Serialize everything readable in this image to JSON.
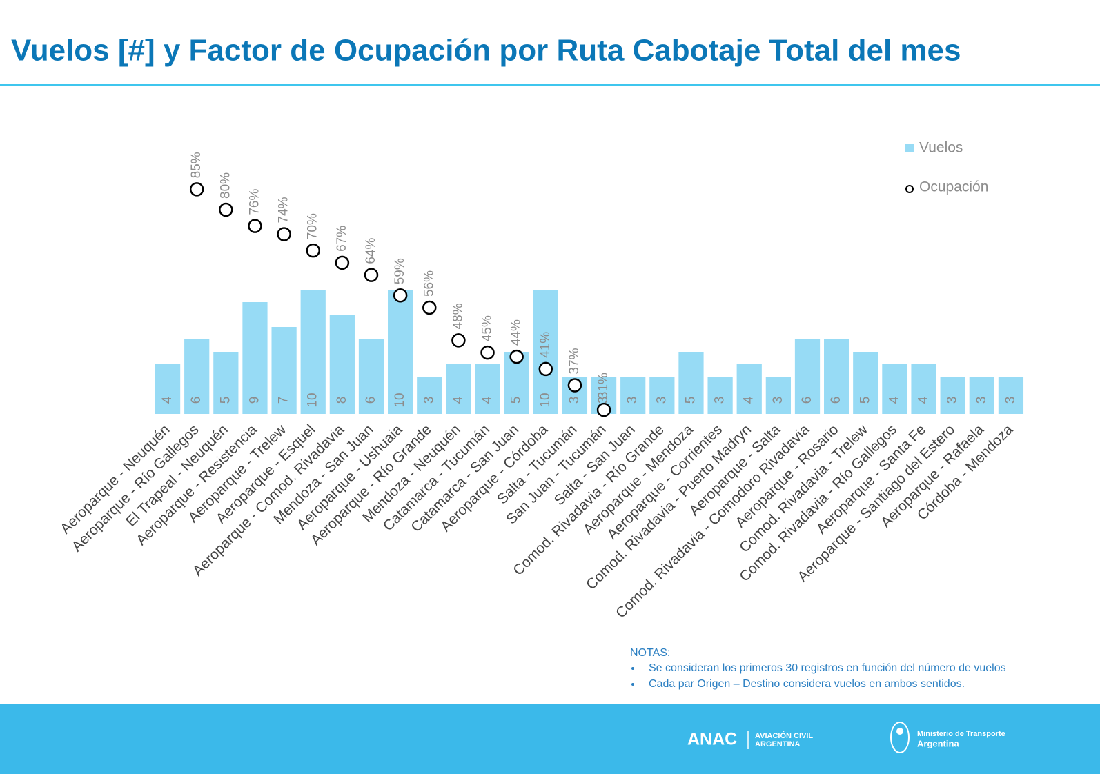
{
  "title": "Vuelos [#] y Factor de Ocupación por Ruta Cabotaje Total del mes",
  "chart_data": {
    "type": "bar",
    "categories": [
      "Aeroparque - Neuquén",
      "Aeroparque - Río Gallegos",
      "El Trapeal - Neuquén",
      "Aeroparque - Resistencia",
      "Aeroparque - Trelew",
      "Aeroparque - Esquel",
      "Aeroparque - Comod. Rivadavia",
      "Mendoza - San Juan",
      "Aeroparque - Ushuaia",
      "Aeroparque - Río Grande",
      "Mendoza - Neuquén",
      "Catamarca - Tucumán",
      "Catamarca - San Juan",
      "Aeroparque - Córdoba",
      "Salta - Tucumán",
      "San Juan - Tucumán",
      "Salta - San Juan",
      "Comod. Rivadavia - Río Grande",
      "Aeroparque - Mendoza",
      "Aeroparque - Corrientes",
      "Comod. Rivadavia - Puerto Madryn",
      "Aeroparque - Salta",
      "Comod. Rivadavia - Comodoro Rivadavia",
      "Aeroparque - Rosario",
      "Comod. Rivadavia - Trelew",
      "Comod. Rivadavia - Río Gallegos",
      "Aeroparque - Santa Fe",
      "Aeroparque - Santiago del Estero",
      "Aeroparque - Rafaela",
      "Córdoba - Mendoza"
    ],
    "series": [
      {
        "name": "Vuelos",
        "type": "bar",
        "color": "#97dbf5",
        "values": [
          4,
          6,
          5,
          9,
          7,
          10,
          8,
          6,
          10,
          3,
          4,
          4,
          5,
          10,
          3,
          3,
          3,
          3,
          5,
          3,
          4,
          3,
          6,
          6,
          5,
          4,
          4,
          3,
          3,
          3
        ]
      },
      {
        "name": "Ocupación",
        "type": "scatter",
        "axis": "y2",
        "color": "#000000",
        "values": [
          null,
          85,
          80,
          76,
          74,
          70,
          67,
          64,
          59,
          56,
          48,
          45,
          44,
          41,
          37,
          31,
          null,
          null,
          null,
          null,
          null,
          null,
          null,
          null,
          null,
          null,
          null,
          null,
          null,
          null
        ],
        "value_labels": [
          null,
          "85%",
          "80%",
          "76%",
          "74%",
          "70%",
          "67%",
          "64%",
          "59%",
          "56%",
          "48%",
          "45%",
          "44%",
          "41%",
          "37%",
          "31%",
          null,
          null,
          null,
          null,
          null,
          null,
          null,
          null,
          null,
          null,
          null,
          null,
          null,
          null
        ]
      }
    ],
    "ylim": [
      0,
      25
    ],
    "y2lim": [
      30,
      106
    ],
    "legend": "top-right"
  },
  "notes": {
    "heading": "NOTAS:",
    "items": [
      "Se consideran los primeros 30 registros en función del número de vuelos",
      "Cada par Origen – Destino considera vuelos en ambos sentidos."
    ]
  },
  "footer": {
    "anac": "ANAC",
    "anac_line1": "AVIACIÓN CIVIL",
    "anac_line2": "ARGENTINA",
    "ministry_line1": "Ministerio de Transporte",
    "ministry_line2": "Argentina"
  }
}
